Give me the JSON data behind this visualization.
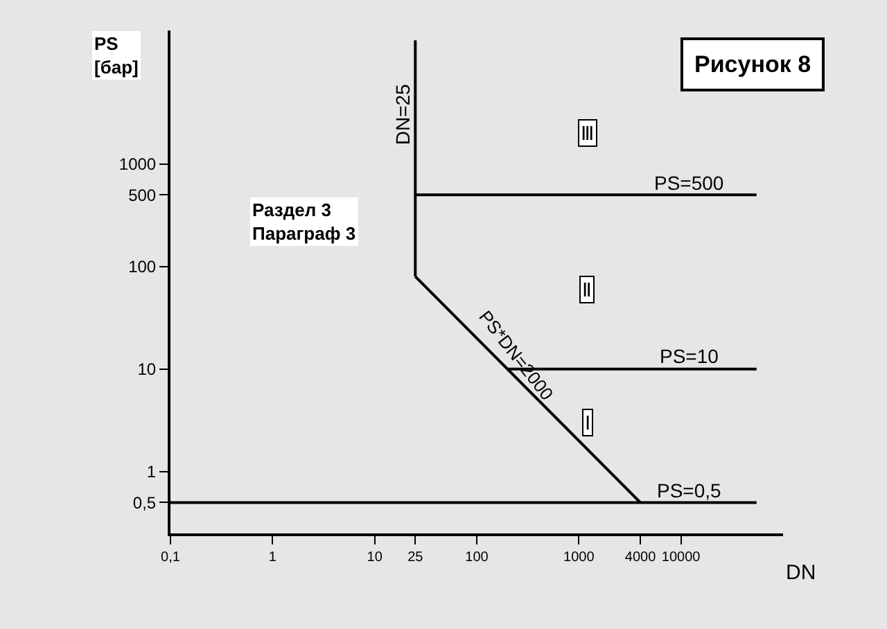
{
  "chart_data": {
    "type": "line",
    "title": "Рисунок 8",
    "xlabel": "DN",
    "ylabel": "PS\n[бар]",
    "log": "xy",
    "xlim": [
      0.1,
      100000
    ],
    "ylim": [
      0.25,
      20000
    ],
    "xticks": [
      {
        "value": 0.1,
        "label": "0,1"
      },
      1,
      10,
      25,
      100,
      1000,
      4000,
      10000
    ],
    "yticks": [
      {
        "value": 0.5,
        "label": "0,5"
      },
      1,
      10,
      100,
      500,
      1000
    ],
    "marker": "none",
    "line_style": "solid",
    "series": [
      {
        "color": "#000000",
        "x": [
          25,
          25
        ],
        "values": [
          80,
          16000
        ]
      },
      {
        "color": "#000000",
        "x": [
          25,
          4000
        ],
        "values": [
          80,
          0.5
        ]
      },
      {
        "color": "#000000",
        "x": [
          25,
          55000
        ],
        "values": [
          500,
          500
        ]
      },
      {
        "color": "#000000",
        "x": [
          200,
          55000
        ],
        "values": [
          10,
          10
        ]
      },
      {
        "color": "#000000",
        "x": [
          0.1,
          55000
        ],
        "values": [
          0.5,
          0.5
        ]
      }
    ],
    "annotations": [
      {
        "text": "DN=25",
        "x": 25,
        "y": 3000
      },
      {
        "text": "PS=500",
        "x": 12000,
        "y": 500
      },
      {
        "text": "PS=10",
        "x": 12000,
        "y": 10
      },
      {
        "text": "PS=0,5",
        "x": 12000,
        "y": 0.5
      },
      "PS*DN=2000",
      {
        "text": "Ⅲ",
        "x": 1200,
        "y": 2000
      },
      {
        "text": "Ⅱ",
        "x": 1200,
        "y": 60
      },
      {
        "text": "Ⅰ",
        "x": 1200,
        "y": 3
      },
      "Раздел 3\nПараграф 3"
    ]
  }
}
